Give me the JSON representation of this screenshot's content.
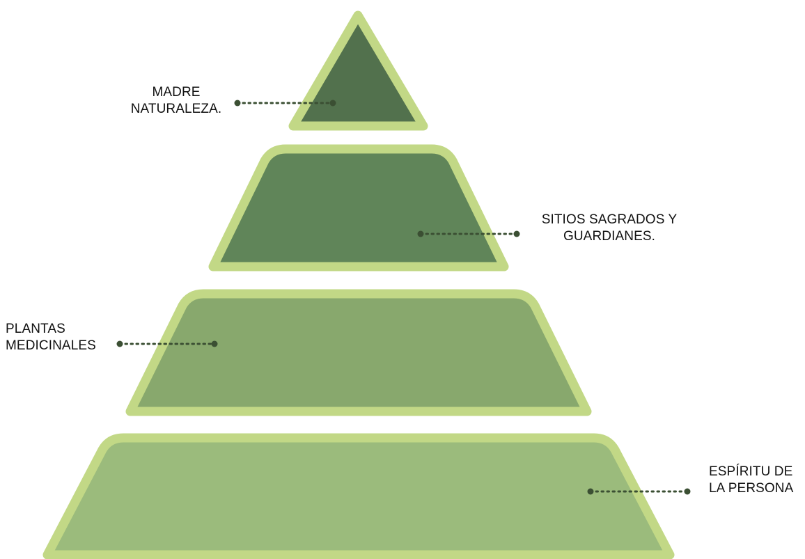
{
  "colors": {
    "border": "#c2d886",
    "tier_1": "#52714d",
    "tier_2": "#608559",
    "tier_3": "#88a86d",
    "tier_4": "#9bbb7c",
    "connector": "#3b4f33"
  },
  "tiers": [
    {
      "id": "madre",
      "label_lines": [
        "MADRE",
        "NATURALEZA."
      ]
    },
    {
      "id": "sitios",
      "label_lines": [
        "SITIOS SAGRADOS Y",
        "GUARDIANES."
      ]
    },
    {
      "id": "plantas",
      "label_lines": [
        "PLANTAS",
        "MEDICINALES"
      ]
    },
    {
      "id": "espiritu",
      "label_lines": [
        "ESPÍRITU DE",
        "LA PERSONA"
      ]
    }
  ]
}
